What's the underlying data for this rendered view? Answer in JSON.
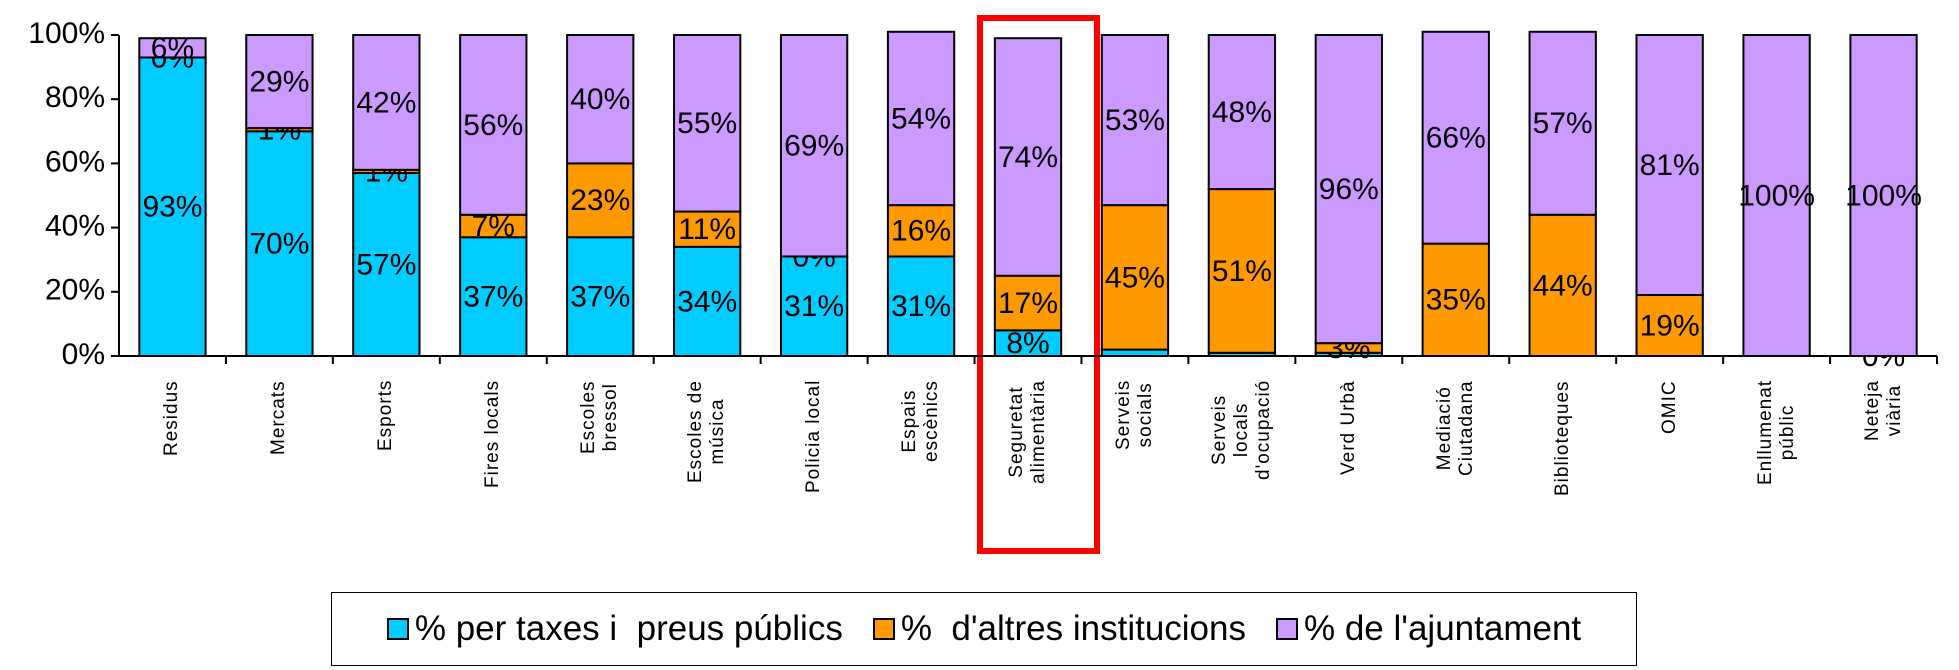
{
  "chart_data": {
    "type": "stacked_bar",
    "categories": [
      "Residus",
      "Mercats",
      "Esports",
      "Fires locals",
      "Escoles\nbressol",
      "Escoles de\nmúsica",
      "Policia local",
      "Espais\nescènics",
      "Seguretat\nalimentària",
      "Serveis\nsocials",
      "Serveis\nlocals\nd'ocupació",
      "Verd Urbà",
      "Mediació\nCiutadana",
      "Biblioteques",
      "OMIC",
      "Enllumenat\npúblic",
      "Neteja\nviària"
    ],
    "series": [
      {
        "name": "% per taxes i  preus públics",
        "color": "#00ccff",
        "values": [
          93,
          70,
          57,
          37,
          37,
          34,
          31,
          31,
          8,
          2,
          1,
          1,
          0,
          0,
          0,
          0,
          0
        ],
        "value_labels": [
          "93%",
          "70%",
          "57%",
          "37%",
          "37%",
          "34%",
          "31%",
          "31%",
          "8%",
          null,
          null,
          null,
          null,
          null,
          null,
          null,
          "0%"
        ]
      },
      {
        "name": "%  d'altres institucions",
        "color": "#ff9900",
        "values": [
          0,
          1,
          1,
          7,
          23,
          11,
          0,
          16,
          17,
          45,
          51,
          3,
          35,
          44,
          19,
          0,
          0
        ],
        "value_labels": [
          "0%",
          "1%",
          "1%",
          "7%",
          "23%",
          "11%",
          "0%",
          "16%",
          "17%",
          "45%",
          "51%",
          "3%",
          "35%",
          "44%",
          "19%",
          null,
          null
        ]
      },
      {
        "name": "% de l'ajuntament",
        "color": "#cc99ff",
        "values": [
          6,
          29,
          42,
          56,
          40,
          55,
          69,
          54,
          74,
          53,
          48,
          96,
          66,
          57,
          81,
          100,
          100
        ],
        "value_labels": [
          "6%",
          "29%",
          "42%",
          "56%",
          "40%",
          "55%",
          "69%",
          "54%",
          "74%",
          "53%",
          "48%",
          "96%",
          "66%",
          "57%",
          "81%",
          "100%",
          "100%"
        ]
      }
    ],
    "ylim": [
      0,
      100
    ],
    "yticks": [
      {
        "value": 0,
        "label": "0%"
      },
      {
        "value": 20,
        "label": "20%"
      },
      {
        "value": 40,
        "label": "40%"
      },
      {
        "value": 60,
        "label": "60%"
      },
      {
        "value": 80,
        "label": "80%"
      },
      {
        "value": 100,
        "label": "100%"
      }
    ],
    "legend": "bottom"
  }
}
